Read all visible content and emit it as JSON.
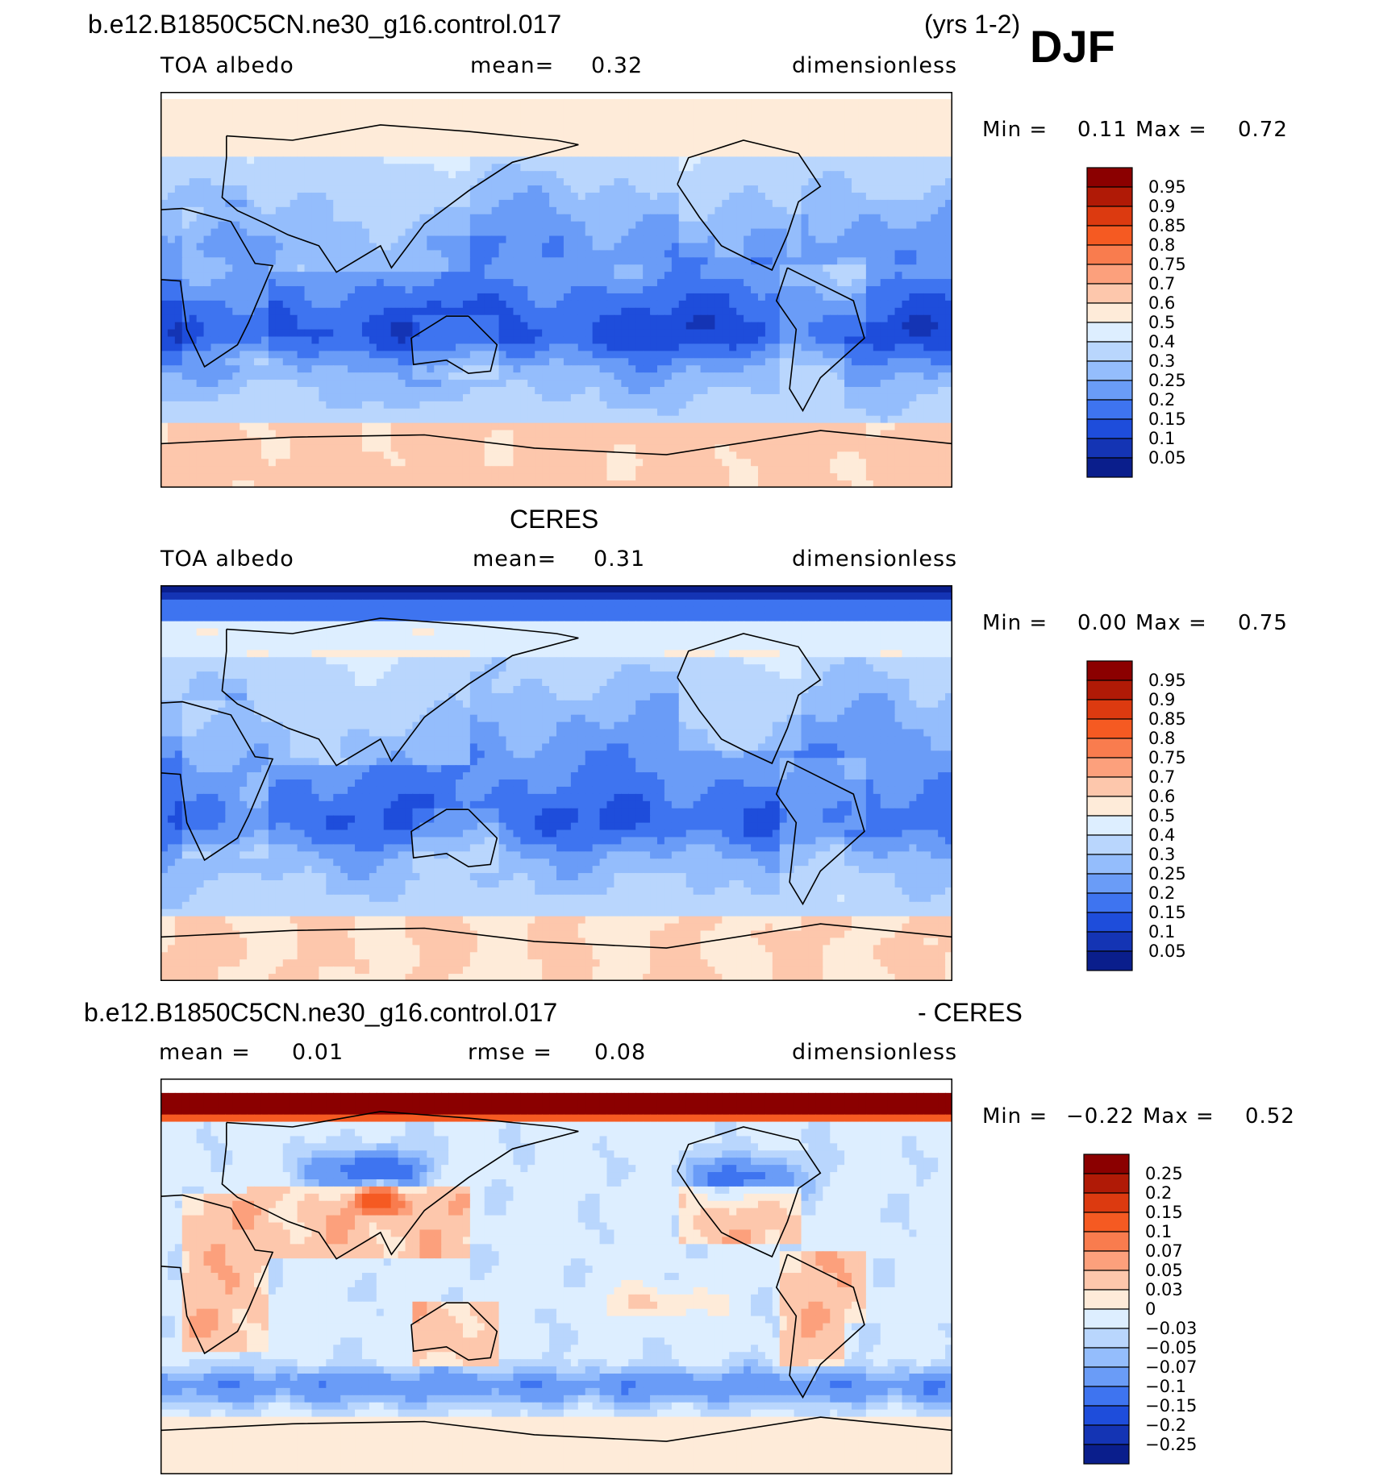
{
  "header": {
    "case": "b.e12.B1850C5CN.ne30_g16.control.017",
    "years": "(yrs 1-2)",
    "season": "DJF"
  },
  "panels": [
    {
      "id": "model",
      "title": "",
      "left_label": "TOA albedo",
      "center_label": "mean=",
      "center_value": "0.32",
      "right_label": "dimensionless",
      "min_label": "Min =",
      "min_value": "0.11",
      "max_label": "Max =",
      "max_value": "0.72",
      "levels": [
        "0.95",
        "0.9",
        "0.85",
        "0.8",
        "0.75",
        "0.7",
        "0.6",
        "0.5",
        "0.4",
        "0.3",
        "0.25",
        "0.2",
        "0.15",
        "0.1",
        "0.05"
      ],
      "colors": [
        "#8b0000",
        "#b01a06",
        "#dc3a10",
        "#f55a22",
        "#f97c4e",
        "#fca07c",
        "#fdc7ac",
        "#feebd9",
        "#ddeeff",
        "#b9d6fd",
        "#94bdfc",
        "#6a9cf7",
        "#3e74f0",
        "#1e4ddb",
        "#1434b4",
        "#0a1e8c"
      ]
    },
    {
      "id": "obs",
      "title": "CERES",
      "left_label": "TOA albedo",
      "center_label": "mean=",
      "center_value": "0.31",
      "right_label": "dimensionless",
      "min_label": "Min =",
      "min_value": "0.00",
      "max_label": "Max =",
      "max_value": "0.75",
      "levels": [
        "0.95",
        "0.9",
        "0.85",
        "0.8",
        "0.75",
        "0.7",
        "0.6",
        "0.5",
        "0.4",
        "0.3",
        "0.25",
        "0.2",
        "0.15",
        "0.1",
        "0.05"
      ],
      "colors": [
        "#8b0000",
        "#b01a06",
        "#dc3a10",
        "#f55a22",
        "#f97c4e",
        "#fca07c",
        "#fdc7ac",
        "#feebd9",
        "#ddeeff",
        "#b9d6fd",
        "#94bdfc",
        "#6a9cf7",
        "#3e74f0",
        "#1e4ddb",
        "#1434b4",
        "#0a1e8c"
      ]
    },
    {
      "id": "diff",
      "title": "b.e12.B1850C5CN.ne30_g16.control.017",
      "title_right": "- CERES",
      "left_label": "mean =",
      "left_value": "0.01",
      "center_label": "rmse =",
      "center_value": "0.08",
      "right_label": "dimensionless",
      "min_label": "Min =",
      "min_value": "−0.22",
      "max_label": "Max =",
      "max_value": "0.52",
      "levels": [
        "0.25",
        "0.2",
        "0.15",
        "0.1",
        "0.07",
        "0.05",
        "0.03",
        "0",
        "−0.03",
        "−0.05",
        "−0.07",
        "−0.1",
        "−0.15",
        "−0.2",
        "−0.25"
      ],
      "colors": [
        "#8b0000",
        "#b01a06",
        "#dc3a10",
        "#f55a22",
        "#f97c4e",
        "#fca07c",
        "#fdc7ac",
        "#feebd9",
        "#ddeeff",
        "#b9d6fd",
        "#94bdfc",
        "#6a9cf7",
        "#3e74f0",
        "#1e4ddb",
        "#1434b4",
        "#0a1e8c"
      ]
    }
  ],
  "chart_data": [
    {
      "type": "heatmap",
      "title": "",
      "variable": "TOA albedo",
      "units": "dimensionless",
      "mean": 0.32,
      "min": 0.11,
      "max": 0.72,
      "projection": "cylindrical equidistant, centered on 180",
      "contour_levels": [
        0.05,
        0.1,
        0.15,
        0.2,
        0.25,
        0.3,
        0.4,
        0.5,
        0.6,
        0.7,
        0.75,
        0.8,
        0.85,
        0.9,
        0.95
      ]
    },
    {
      "type": "heatmap",
      "title": "CERES",
      "variable": "TOA albedo",
      "units": "dimensionless",
      "mean": 0.31,
      "min": 0.0,
      "max": 0.75,
      "projection": "cylindrical equidistant, centered on 180",
      "contour_levels": [
        0.05,
        0.1,
        0.15,
        0.2,
        0.25,
        0.3,
        0.4,
        0.5,
        0.6,
        0.7,
        0.75,
        0.8,
        0.85,
        0.9,
        0.95
      ]
    },
    {
      "type": "heatmap",
      "title": "b.e12.B1850C5CN.ne30_g16.control.017 - CERES",
      "units": "dimensionless",
      "mean": 0.01,
      "rmse": 0.08,
      "min": -0.22,
      "max": 0.52,
      "projection": "cylindrical equidistant, centered on 180",
      "contour_levels": [
        -0.25,
        -0.2,
        -0.15,
        -0.1,
        -0.07,
        -0.05,
        -0.03,
        0,
        0.03,
        0.05,
        0.07,
        0.1,
        0.15,
        0.2,
        0.25
      ]
    }
  ]
}
